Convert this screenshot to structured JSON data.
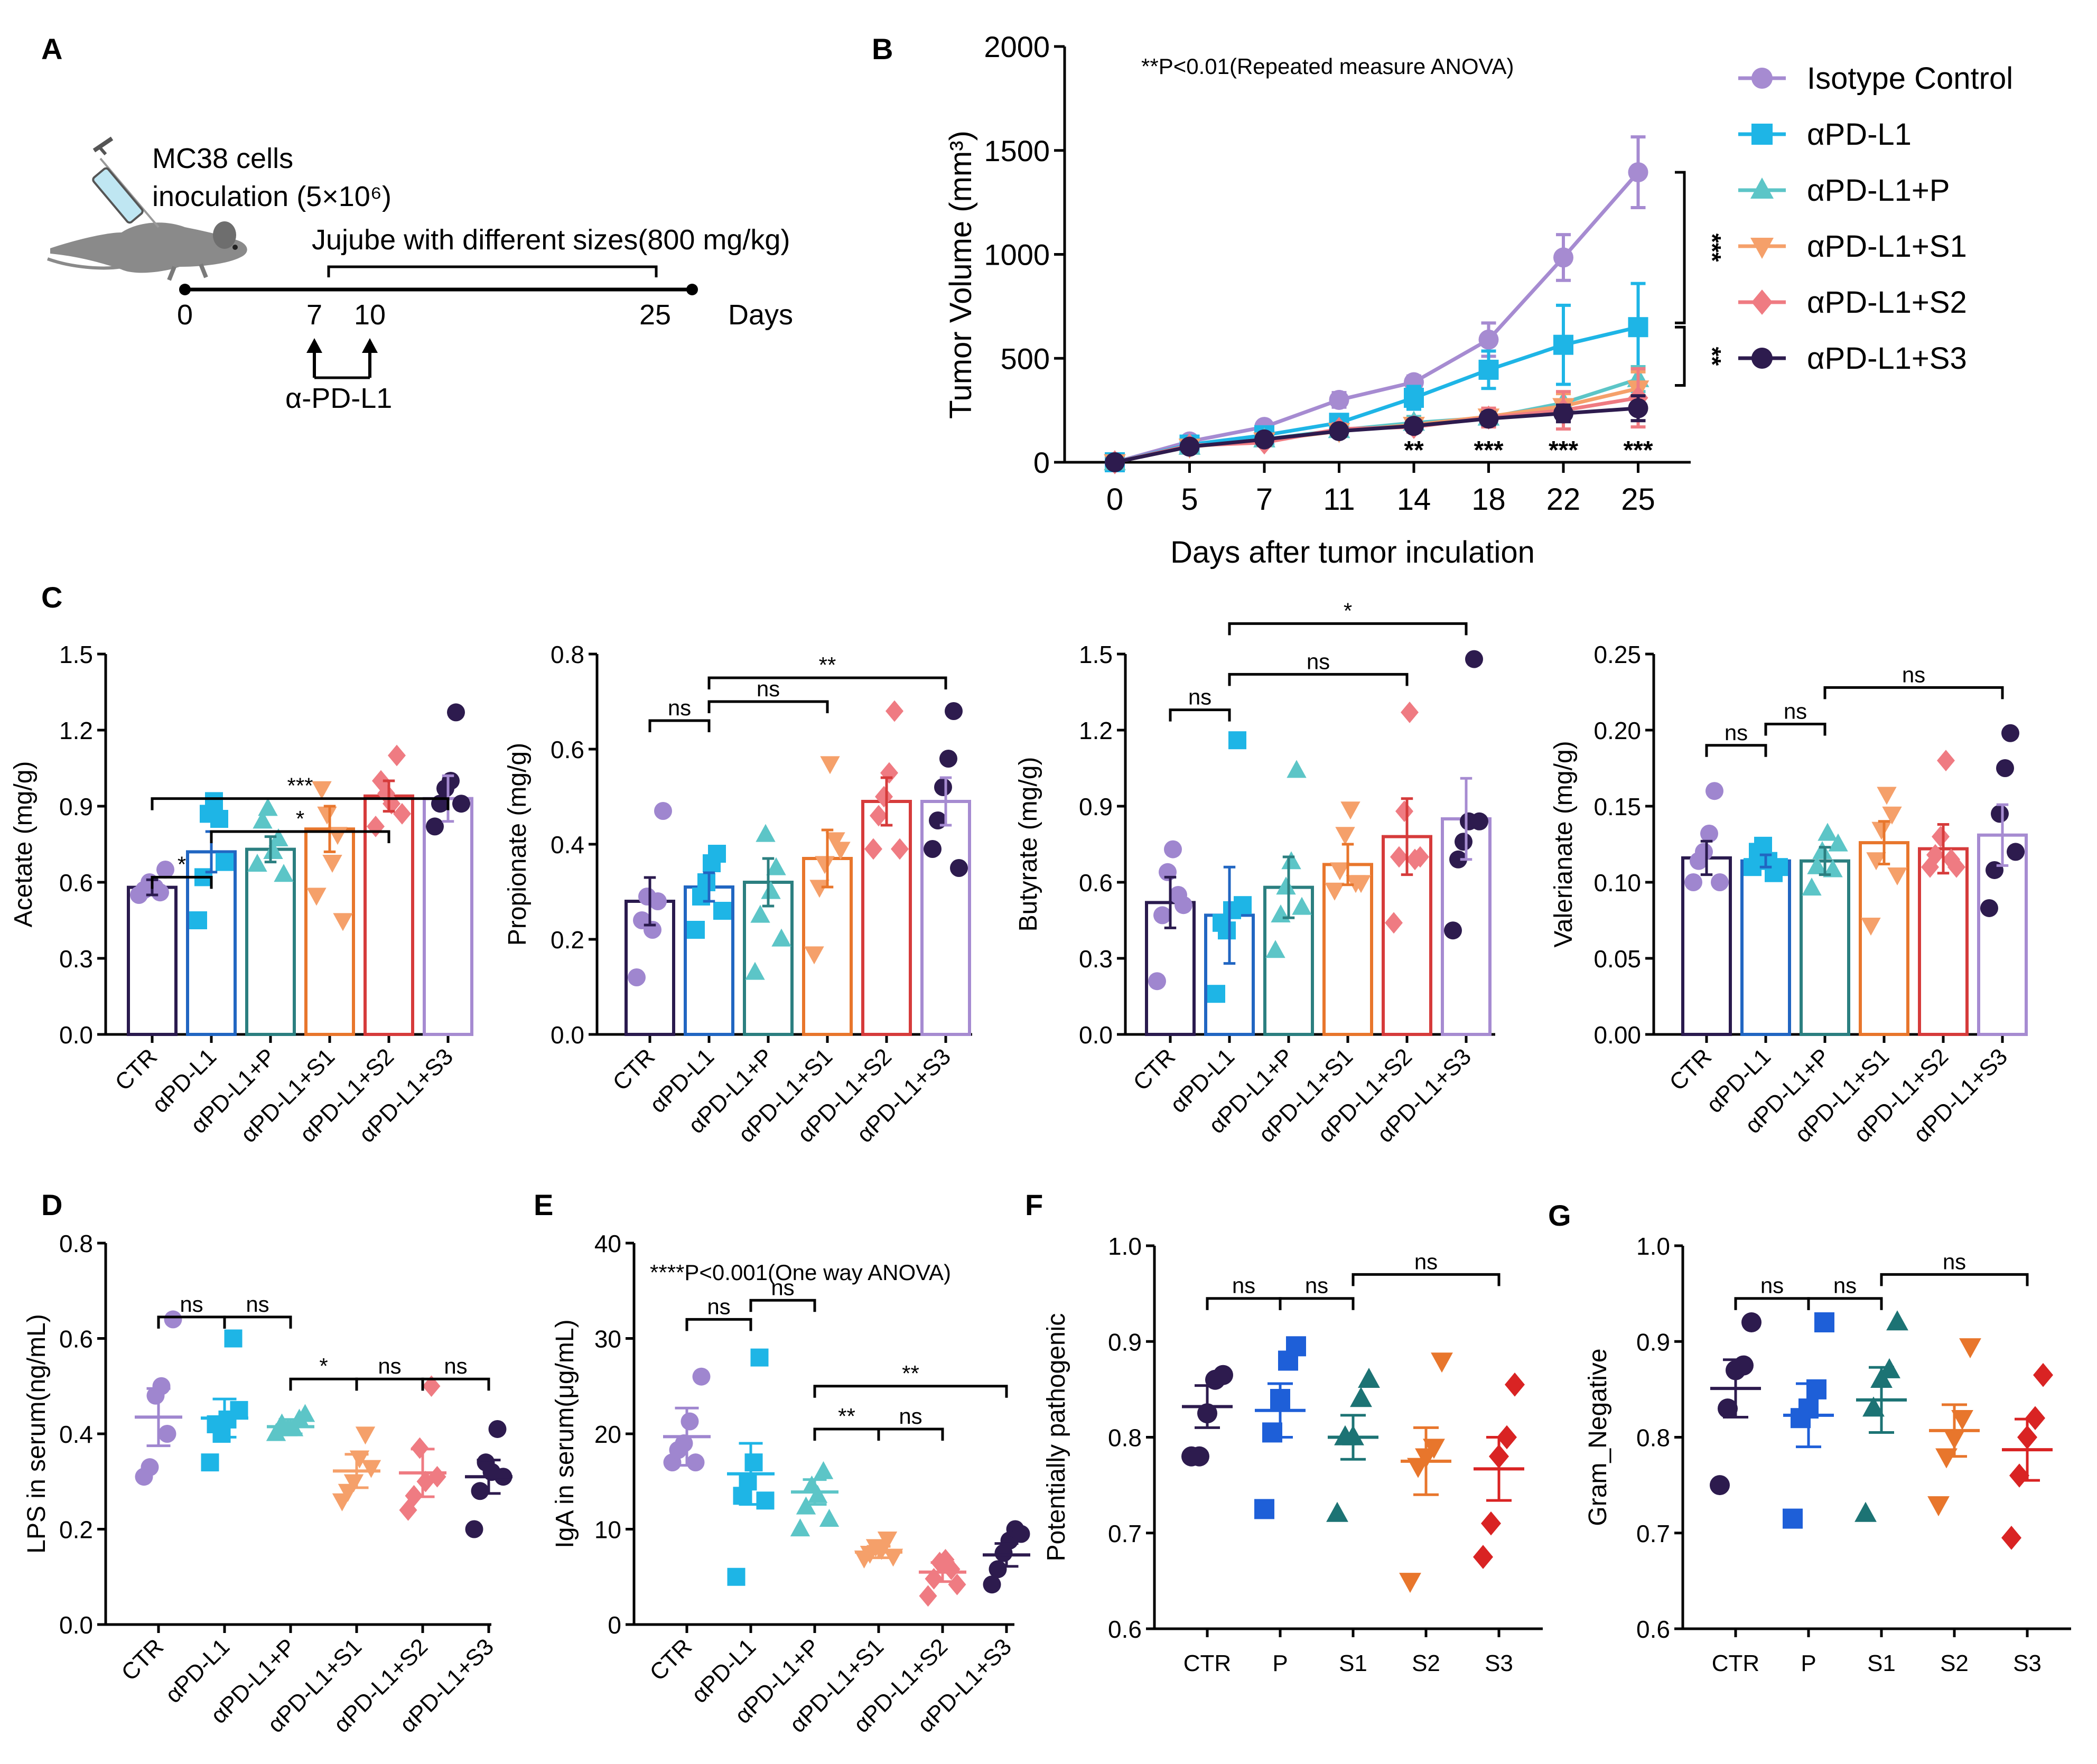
{
  "panel_labels": [
    "A",
    "B",
    "C",
    "D",
    "E",
    "F",
    "G"
  ],
  "colors": {
    "CTR": "#2a1a4e",
    "aPD-L1": "#2166c2",
    "aPD-L1+P": "#2b7f80",
    "aPD-L1+S1": "#e8762c",
    "aPD-L1+S2": "#d63b3b",
    "aPD-L1+S3": "#a68bd1",
    "dotCTR": "#9f86cf",
    "dotP": "#1eb5e6",
    "dotPP": "#5cc5c7",
    "dotS1": "#f5a06a",
    "dotS2": "#ef7b82",
    "dotS3": "#2d1b4e",
    "scatCTR": "#2d1b4e",
    "scatP": "#1e5fd8",
    "scatS1": "#1c7374",
    "scatS2": "#e8762c",
    "scatS3": "#d92323"
  },
  "schematic": {
    "cells_line1": "MC38 cells",
    "cells_line2": "inoculation (5×10⁶)",
    "treatment": "Jujube with different sizes(800 mg/kg)",
    "days": [
      "0",
      "7",
      "10",
      "25"
    ],
    "days_label": "Days",
    "antibody": "α-PD-L1",
    "icons": [
      "mouse-icon",
      "syringe-icon",
      "arrow-up-icon"
    ]
  },
  "chart_data": [
    {
      "panel": "B",
      "type": "line",
      "title": "**P<0.01(Repeated measure ANOVA)",
      "xlabel": "Days after tumor inculation",
      "ylabel": "Tumor Volume (mm³)",
      "x": [
        0,
        5,
        7,
        11,
        14,
        18,
        22,
        25
      ],
      "ylim": [
        0,
        2000
      ],
      "yticks": [
        0,
        500,
        1000,
        1500,
        2000
      ],
      "series": [
        {
          "name": "Isotype Control",
          "marker": "circle",
          "color": "#a68bd1",
          "values": [
            0,
            100,
            170,
            300,
            385,
            590,
            985,
            1395
          ],
          "err": [
            0,
            15,
            20,
            35,
            30,
            80,
            110,
            170
          ]
        },
        {
          "name": "αPD-L1",
          "marker": "square",
          "color": "#1eb5e6",
          "values": [
            0,
            85,
            130,
            190,
            310,
            445,
            565,
            650
          ],
          "err": [
            0,
            15,
            20,
            30,
            55,
            90,
            190,
            210
          ]
        },
        {
          "name": "αPD-L1+P",
          "marker": "triangle",
          "color": "#5cc5c7",
          "values": [
            0,
            75,
            110,
            155,
            190,
            215,
            285,
            400
          ],
          "err": [
            0,
            10,
            15,
            25,
            30,
            35,
            50,
            60
          ]
        },
        {
          "name": "αPD-L1+S1",
          "marker": "tri-down",
          "color": "#f5a06a",
          "values": [
            0,
            75,
            105,
            150,
            180,
            220,
            270,
            355
          ],
          "err": [
            0,
            10,
            15,
            25,
            30,
            40,
            60,
            80
          ]
        },
        {
          "name": "αPD-L1+S2",
          "marker": "diamond",
          "color": "#ef7b82",
          "values": [
            0,
            80,
            95,
            160,
            170,
            215,
            250,
            310
          ],
          "err": [
            0,
            10,
            15,
            25,
            25,
            45,
            90,
            140
          ]
        },
        {
          "name": "αPD-L1+S3",
          "marker": "dot-ring",
          "color": "#2d1b4e",
          "values": [
            0,
            75,
            110,
            150,
            175,
            210,
            235,
            260
          ],
          "err": [
            0,
            10,
            15,
            20,
            25,
            30,
            40,
            60
          ]
        }
      ],
      "sig_below": [
        {
          "x": 14,
          "label": "**"
        },
        {
          "x": 18,
          "label": "***"
        },
        {
          "x": 22,
          "label": "***"
        },
        {
          "x": 25,
          "label": "***"
        }
      ],
      "brackets": [
        {
          "from": 1395,
          "to": 650,
          "label": "***"
        },
        {
          "from": 650,
          "to": 390,
          "label": "**"
        }
      ]
    },
    {
      "panel": "C",
      "type": "bar",
      "ylabel": "Acetate (mg/g)",
      "categories": [
        "CTR",
        "αPD-L1",
        "αPD-L1+P",
        "αPD-L1+S1",
        "αPD-L1+S2",
        "αPD-L1+S3"
      ],
      "ylim": [
        0,
        1.5
      ],
      "yticks": [
        "0.0",
        "0.3",
        "0.6",
        "0.9",
        "1.2",
        "1.5"
      ],
      "means": [
        0.58,
        0.72,
        0.73,
        0.81,
        0.94,
        0.93
      ],
      "sem": [
        0.03,
        0.08,
        0.05,
        0.09,
        0.06,
        0.09
      ],
      "points": [
        [
          0.55,
          0.57,
          0.6,
          0.58,
          0.56,
          0.65
        ],
        [
          0.45,
          0.62,
          0.87,
          0.92,
          0.85,
          0.68
        ],
        [
          0.67,
          0.84,
          0.89,
          0.72,
          0.77,
          0.63
        ],
        [
          0.55,
          0.97,
          0.87,
          0.68,
          0.79,
          0.45
        ],
        [
          0.82,
          1.0,
          0.95,
          0.91,
          1.1,
          0.87
        ],
        [
          0.82,
          0.91,
          0.97,
          1.0,
          1.27,
          0.91
        ]
      ],
      "brackets": [
        {
          "a": 0,
          "b": 1,
          "level": 0.62,
          "label": "*"
        },
        {
          "a": 1,
          "b": 4,
          "level": 0.8,
          "label": "*"
        },
        {
          "a": 0,
          "b": 5,
          "level": 0.93,
          "label": "***"
        }
      ]
    },
    {
      "panel": "C",
      "type": "bar",
      "ylabel": "Propionate (mg/g)",
      "categories": [
        "CTR",
        "αPD-L1",
        "αPD-L1+P",
        "αPD-L1+S1",
        "αPD-L1+S2",
        "αPD-L1+S3"
      ],
      "ylim": [
        0,
        0.8
      ],
      "yticks": [
        "0.0",
        "0.2",
        "0.4",
        "0.6",
        "0.8"
      ],
      "means": [
        0.28,
        0.31,
        0.32,
        0.37,
        0.49,
        0.49
      ],
      "sem": [
        0.05,
        0.03,
        0.05,
        0.06,
        0.05,
        0.05
      ],
      "points": [
        [
          0.12,
          0.24,
          0.29,
          0.22,
          0.28,
          0.47
        ],
        [
          0.22,
          0.29,
          0.32,
          0.36,
          0.38,
          0.26
        ],
        [
          0.13,
          0.25,
          0.42,
          0.3,
          0.35,
          0.2
        ],
        [
          0.17,
          0.31,
          0.36,
          0.57,
          0.41,
          0.39
        ],
        [
          0.39,
          0.46,
          0.5,
          0.55,
          0.68,
          0.39
        ],
        [
          0.39,
          0.45,
          0.52,
          0.58,
          0.68,
          0.35
        ]
      ],
      "brackets": [
        {
          "a": 0,
          "b": 1,
          "level": 0.66,
          "label": "ns"
        },
        {
          "a": 1,
          "b": 3,
          "level": 0.7,
          "label": "ns"
        },
        {
          "a": 1,
          "b": 5,
          "level": 0.75,
          "label": "**"
        }
      ]
    },
    {
      "panel": "C",
      "type": "bar",
      "ylabel": "Butyrate (mg/g)",
      "categories": [
        "CTR",
        "αPD-L1",
        "αPD-L1+P",
        "αPD-L1+S1",
        "αPD-L1+S2",
        "αPD-L1+S3"
      ],
      "ylim": [
        0,
        1.5
      ],
      "yticks": [
        "0.0",
        "0.3",
        "0.6",
        "0.9",
        "1.2",
        "1.5"
      ],
      "means": [
        0.52,
        0.47,
        0.58,
        0.67,
        0.78,
        0.85
      ],
      "sem": [
        0.1,
        0.19,
        0.12,
        0.08,
        0.15,
        0.16
      ],
      "points": [
        [
          0.21,
          0.47,
          0.64,
          0.73,
          0.55,
          0.51
        ],
        [
          0.16,
          0.44,
          0.41,
          0.49,
          1.16,
          0.51
        ],
        [
          0.33,
          0.47,
          0.58,
          0.68,
          1.04,
          0.5
        ],
        [
          0.57,
          0.65,
          0.79,
          0.89,
          0.6,
          0.6
        ],
        [
          0.44,
          0.7,
          0.88,
          1.27,
          0.69,
          0.7
        ],
        [
          0.41,
          0.69,
          0.76,
          0.84,
          1.48,
          0.84
        ]
      ],
      "brackets": [
        {
          "a": 0,
          "b": 1,
          "level": 1.28,
          "label": "ns"
        },
        {
          "a": 1,
          "b": 4,
          "level": 1.42,
          "label": "ns"
        },
        {
          "a": 1,
          "b": 5,
          "level": 1.62,
          "label": "*"
        }
      ]
    },
    {
      "panel": "C",
      "type": "bar",
      "ylabel": "Valerianate (mg/g)",
      "categories": [
        "CTR",
        "αPD-L1",
        "αPD-L1+P",
        "αPD-L1+S1",
        "αPD-L1+S2",
        "αPD-L1+S3"
      ],
      "ylim": [
        0,
        0.25
      ],
      "yticks": [
        "0.00",
        "0.05",
        "0.10",
        "0.15",
        "0.20",
        "0.25"
      ],
      "means": [
        0.116,
        0.114,
        0.114,
        0.126,
        0.122,
        0.131
      ],
      "sem": [
        0.011,
        0.004,
        0.009,
        0.014,
        0.016,
        0.02
      ],
      "points": [
        [
          0.1,
          0.114,
          0.12,
          0.132,
          0.16,
          0.1
        ],
        [
          0.11,
          0.12,
          0.124,
          0.114,
          0.106,
          0.11
        ],
        [
          0.096,
          0.11,
          0.12,
          0.132,
          0.108,
          0.125
        ],
        [
          0.072,
          0.115,
          0.135,
          0.158,
          0.145,
          0.105
        ],
        [
          0.11,
          0.118,
          0.13,
          0.18,
          0.115,
          0.11
        ],
        [
          0.083,
          0.108,
          0.145,
          0.175,
          0.198,
          0.12
        ]
      ],
      "brackets": [
        {
          "a": 0,
          "b": 1,
          "level": 0.19,
          "label": "ns"
        },
        {
          "a": 1,
          "b": 2,
          "level": 0.204,
          "label": "ns"
        },
        {
          "a": 2,
          "b": 5,
          "level": 0.228,
          "label": "ns"
        }
      ]
    },
    {
      "panel": "D",
      "type": "scatter",
      "ylabel": "LPS in serum(ng/mL)",
      "categories": [
        "CTR",
        "αPD-L1",
        "αPD-L1+P",
        "αPD-L1+S1",
        "αPD-L1+S2",
        "αPD-L1+S3"
      ],
      "ylim": [
        0,
        0.8
      ],
      "yticks": [
        "0.0",
        "0.2",
        "0.4",
        "0.6",
        "0.8"
      ],
      "means": [
        0.435,
        0.433,
        0.415,
        0.322,
        0.318,
        0.31
      ],
      "sem": [
        0.06,
        0.04,
        0.015,
        0.035,
        0.05,
        0.035
      ],
      "points": [
        [
          0.31,
          0.33,
          0.48,
          0.5,
          0.4,
          0.64
        ],
        [
          0.34,
          0.42,
          0.4,
          0.43,
          0.6,
          0.45
        ],
        [
          0.4,
          0.42,
          0.41,
          0.41,
          0.43,
          0.44
        ],
        [
          0.26,
          0.28,
          0.3,
          0.35,
          0.4,
          0.33
        ],
        [
          0.24,
          0.27,
          0.37,
          0.3,
          0.5,
          0.31
        ],
        [
          0.2,
          0.28,
          0.34,
          0.32,
          0.41,
          0.31
        ]
      ],
      "brackets": [
        {
          "a": 0,
          "b": 1,
          "level": 0.645,
          "label": "ns"
        },
        {
          "a": 1,
          "b": 2,
          "level": 0.645,
          "label": "ns"
        },
        {
          "a": 2,
          "b": 3,
          "level": 0.515,
          "label": "*"
        },
        {
          "a": 3,
          "b": 4,
          "level": 0.515,
          "label": "ns"
        },
        {
          "a": 4,
          "b": 5,
          "level": 0.515,
          "label": "ns"
        }
      ]
    },
    {
      "panel": "E",
      "type": "scatter",
      "ylabel": "IgA in serum(μg/mL)",
      "annotation": "****P<0.001(One way ANOVA)",
      "categories": [
        "CTR",
        "αPD-L1",
        "αPD-L1+P",
        "αPD-L1+S1",
        "αPD-L1+S2",
        "αPD-L1+S3"
      ],
      "ylim": [
        0,
        40
      ],
      "yticks": [
        "0",
        "10",
        "20",
        "30",
        "40"
      ],
      "means": [
        19.7,
        15.8,
        13.9,
        7.6,
        5.5,
        7.3
      ],
      "sem": [
        3.0,
        3.2,
        1.3,
        0.6,
        1.0,
        1.2
      ],
      "points": [
        [
          17,
          18.3,
          19,
          21.3,
          17,
          26
        ],
        [
          5,
          13.5,
          15,
          17,
          28,
          13
        ],
        [
          10,
          12.3,
          14.5,
          13.5,
          16,
          11
        ],
        [
          7,
          7.5,
          8.2,
          7.9,
          9,
          7.2
        ],
        [
          3,
          4.8,
          6.5,
          6.8,
          5.8,
          4.2
        ],
        [
          4.2,
          5.8,
          7.5,
          8.8,
          10,
          9.5
        ]
      ],
      "brackets": [
        {
          "a": 0,
          "b": 1,
          "level": 32,
          "label": "ns"
        },
        {
          "a": 1,
          "b": 2,
          "level": 34,
          "label": "ns"
        },
        {
          "a": 2,
          "b": 3,
          "level": 20.5,
          "label": "**"
        },
        {
          "a": 3,
          "b": 4,
          "level": 20.5,
          "label": "ns"
        },
        {
          "a": 2,
          "b": 5,
          "level": 25,
          "label": "**"
        }
      ]
    },
    {
      "panel": "F",
      "type": "scatter",
      "ylabel": "Potentially pathogenic",
      "categories": [
        "CTR",
        "P",
        "S1",
        "S2",
        "S3"
      ],
      "ylim": [
        0.6,
        1.0
      ],
      "yticks": [
        "0.6",
        "0.7",
        "0.8",
        "0.9",
        "1.0"
      ],
      "means": [
        0.832,
        0.828,
        0.8,
        0.775,
        0.767
      ],
      "sem": [
        0.022,
        0.028,
        0.023,
        0.035,
        0.033
      ],
      "points": [
        [
          0.78,
          0.78,
          0.825,
          0.86,
          0.865
        ],
        [
          0.725,
          0.805,
          0.84,
          0.88,
          0.895
        ],
        [
          0.72,
          0.8,
          0.8,
          0.84,
          0.86
        ],
        [
          0.65,
          0.77,
          0.78,
          0.79,
          0.88
        ],
        [
          0.675,
          0.71,
          0.78,
          0.8,
          0.855
        ]
      ],
      "brackets": [
        {
          "a": 0,
          "b": 1,
          "level": 0.945,
          "label": "ns"
        },
        {
          "a": 1,
          "b": 2,
          "level": 0.945,
          "label": "ns"
        },
        {
          "a": 2,
          "b": 4,
          "level": 0.97,
          "label": "ns"
        }
      ]
    },
    {
      "panel": "G",
      "type": "scatter",
      "ylabel": "Gram_Negative",
      "categories": [
        "CTR",
        "P",
        "S1",
        "S2",
        "S3"
      ],
      "ylim": [
        0.6,
        1.0
      ],
      "yticks": [
        "0.6",
        "0.7",
        "0.8",
        "0.9",
        "1.0"
      ],
      "means": [
        0.851,
        0.823,
        0.839,
        0.807,
        0.787
      ],
      "sem": [
        0.03,
        0.033,
        0.034,
        0.027,
        0.032
      ],
      "points": [
        [
          0.75,
          0.83,
          0.87,
          0.875,
          0.92
        ],
        [
          0.715,
          0.82,
          0.83,
          0.85,
          0.92
        ],
        [
          0.72,
          0.83,
          0.86,
          0.87,
          0.92
        ],
        [
          0.73,
          0.78,
          0.8,
          0.82,
          0.895
        ],
        [
          0.695,
          0.76,
          0.8,
          0.82,
          0.865
        ]
      ],
      "brackets": [
        {
          "a": 0,
          "b": 1,
          "level": 0.945,
          "label": "ns"
        },
        {
          "a": 1,
          "b": 2,
          "level": 0.945,
          "label": "ns"
        },
        {
          "a": 2,
          "b": 4,
          "level": 0.97,
          "label": "ns"
        }
      ]
    }
  ]
}
